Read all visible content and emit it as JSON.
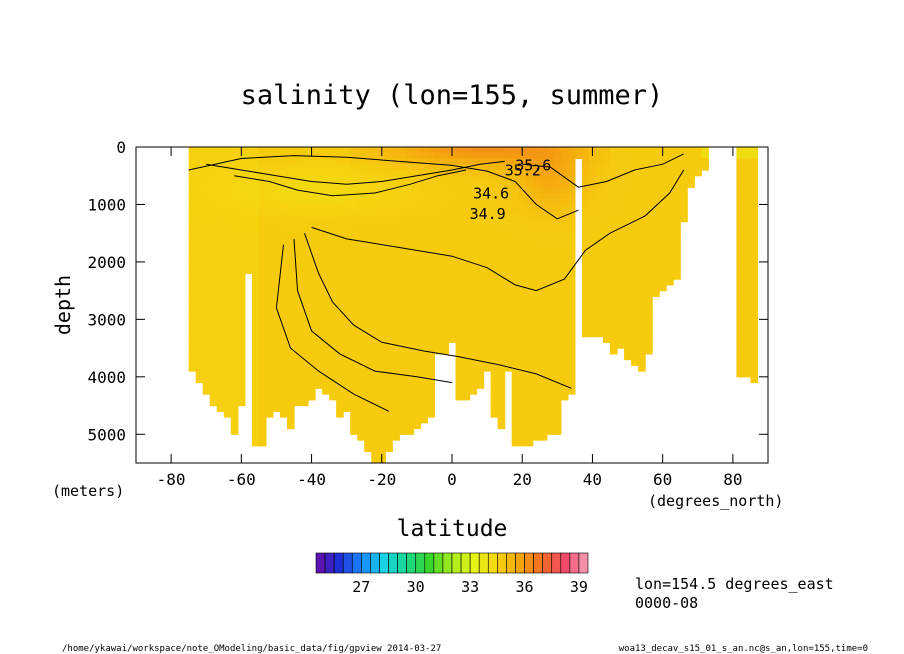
{
  "chart_data": {
    "type": "heatmap",
    "title": "salinity (lon=155, summer)",
    "xlabel": "latitude",
    "ylabel": "depth",
    "x_unit": "(degrees_north)",
    "y_unit": "(meters)",
    "xlim": [
      -90,
      90
    ],
    "ylim": [
      5500,
      0
    ],
    "x_ticks": [
      "-80",
      "-60",
      "-40",
      "-20",
      "0",
      "20",
      "40",
      "60",
      "80"
    ],
    "x_tick_values": [
      -80,
      -60,
      -40,
      -20,
      0,
      20,
      40,
      60,
      80
    ],
    "y_ticks": [
      "0",
      "1000",
      "2000",
      "3000",
      "4000",
      "5000"
    ],
    "y_tick_values": [
      0,
      1000,
      2000,
      3000,
      4000,
      5000
    ],
    "colorbar": {
      "range": [
        24.5,
        39.5
      ],
      "step": 0.5,
      "tick_labels": [
        "27",
        "30",
        "33",
        "36",
        "39"
      ],
      "tick_values": [
        27,
        30,
        33,
        36,
        39
      ]
    },
    "contour_labels": [
      "34.6",
      "34.9",
      "35.2",
      "35.6"
    ],
    "colormap_stops": [
      "#6a0ea8",
      "#1f2ed4",
      "#1a86ff",
      "#18d2e6",
      "#19d88c",
      "#38d62a",
      "#a8ec1c",
      "#e4f416",
      "#f6d20e",
      "#f5a40e",
      "#f26a24",
      "#f04a6a",
      "#f8a0b8"
    ],
    "bottom_profile": {
      "lat": [
        -76,
        -74,
        -72,
        -70,
        -68,
        -66,
        -64,
        -62,
        -60,
        -58,
        -56,
        -54,
        -52,
        -50,
        -48,
        -46,
        -44,
        -42,
        -40,
        -38,
        -36,
        -34,
        -32,
        -30,
        -28,
        -26,
        -24,
        -22,
        -20,
        -18,
        -16,
        -14,
        -12,
        -10,
        -8,
        -6,
        -4,
        -2,
        0,
        2,
        4,
        6,
        8,
        10,
        12,
        14,
        16,
        18,
        20,
        22,
        24,
        26,
        28,
        30,
        32,
        34,
        36,
        38,
        40,
        42,
        44,
        46,
        48,
        50,
        52,
        54,
        56,
        58,
        60,
        62,
        64,
        66,
        68,
        70,
        72,
        74,
        76,
        78,
        80,
        82,
        84,
        86,
        88
      ],
      "depth": [
        3400,
        3900,
        4100,
        4300,
        4500,
        4600,
        4700,
        5000,
        4500,
        2200,
        5200,
        5200,
        4700,
        4600,
        4700,
        4900,
        4500,
        4500,
        4400,
        4200,
        4300,
        4400,
        4700,
        4600,
        5000,
        5100,
        5300,
        5500,
        5500,
        5300,
        5100,
        5000,
        5000,
        4900,
        4800,
        4700,
        3600,
        3600,
        3400,
        4400,
        4400,
        4300,
        4200,
        3900,
        4700,
        4900,
        3900,
        5200,
        5200,
        5200,
        5100,
        5100,
        5000,
        5000,
        4400,
        4300,
        200,
        3300,
        3300,
        3300,
        3400,
        3600,
        3500,
        3700,
        3800,
        3900,
        3600,
        2600,
        2500,
        2400,
        2300,
        1300,
        700,
        500,
        400,
        0,
        0,
        0,
        0,
        4000,
        4000,
        4100,
        0
      ]
    },
    "ocean_lat_range": [
      -75,
      89
    ]
  },
  "info": {
    "position_label": "lon=154.5 degrees_east",
    "time_label": "0000-08"
  },
  "footer": {
    "left": "/home/ykawai/workspace/note_OModeling/basic_data/fig/gpview  2014-03-27",
    "right": "woa13_decav_s15_01_s_an.nc@s_an,lon=155,time=0"
  }
}
